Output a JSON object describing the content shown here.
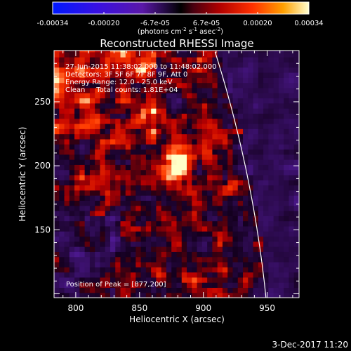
{
  "colorbar": {
    "tick_labels": [
      "-0.00034",
      "-0.00020",
      "-6.7e-05",
      "6.7e-05",
      "0.00020",
      "0.00034"
    ],
    "units_pre": "(photons cm",
    "units_exp1": "-2",
    "units_mid": " s",
    "units_exp2": "-1",
    "units_mid2": " asec",
    "units_exp3": "-2",
    "units_post": ")"
  },
  "chart_data": {
    "type": "heatmap",
    "title": "Reconstructed RHESSI Image",
    "xlabel": "Heliocentric X (arcsec)",
    "ylabel": "Heliocentric Y (arcsec)",
    "xlim": [
      783,
      975
    ],
    "ylim": [
      97,
      290
    ],
    "x_ticks": [
      800,
      850,
      900,
      950
    ],
    "y_ticks": [
      150,
      200,
      250
    ],
    "color_range": [
      -0.00034,
      0.00034
    ],
    "peak": {
      "x": 877,
      "y": 200
    },
    "limb_arcsec": 954,
    "annotations": [
      "27-Jun-2015 11:38:02.000 to 11:48:02.000",
      "Detectors: 3F 5F 6F 7F 8F 9F, Att 0",
      "Energy Range: 12.0 - 25.0 keV",
      "Clean     Total counts: 1.81E+04"
    ],
    "peak_label": "Position of Peak = [877,200]"
  },
  "footer": {
    "date": "3-Dec-2017 11:20"
  }
}
